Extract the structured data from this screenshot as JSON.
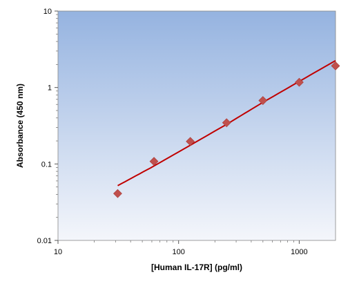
{
  "chart_data": {
    "type": "scatter",
    "title": "",
    "xlabel": "[Human IL-17R] (pg/ml)",
    "ylabel": "Absorbance (450 nm)",
    "xscale": "log",
    "yscale": "log",
    "xlim": [
      10,
      2000
    ],
    "ylim": [
      0.01,
      10
    ],
    "x_ticks": [
      "10",
      "100",
      "1000"
    ],
    "y_ticks": [
      "0.01",
      "0.1",
      "1",
      "10"
    ],
    "grid": false,
    "legend": "none",
    "colors": {
      "marker": "#c0504d",
      "fit_line": "#c00000",
      "plot_bg_top": "#95b3e0",
      "plot_bg_bottom": "#f4f6fb"
    },
    "series": [
      {
        "kind": "points",
        "x": [
          31.25,
          62.5,
          125,
          250,
          500,
          1000,
          2000
        ],
        "y": [
          0.041,
          0.108,
          0.197,
          0.346,
          0.675,
          1.17,
          1.92
        ]
      },
      {
        "kind": "fit-line",
        "x": [
          31.25,
          62.5,
          125,
          250,
          500,
          1000,
          2000
        ],
        "y": [
          0.052,
          0.094,
          0.176,
          0.33,
          0.64,
          1.2,
          2.25
        ]
      }
    ]
  }
}
